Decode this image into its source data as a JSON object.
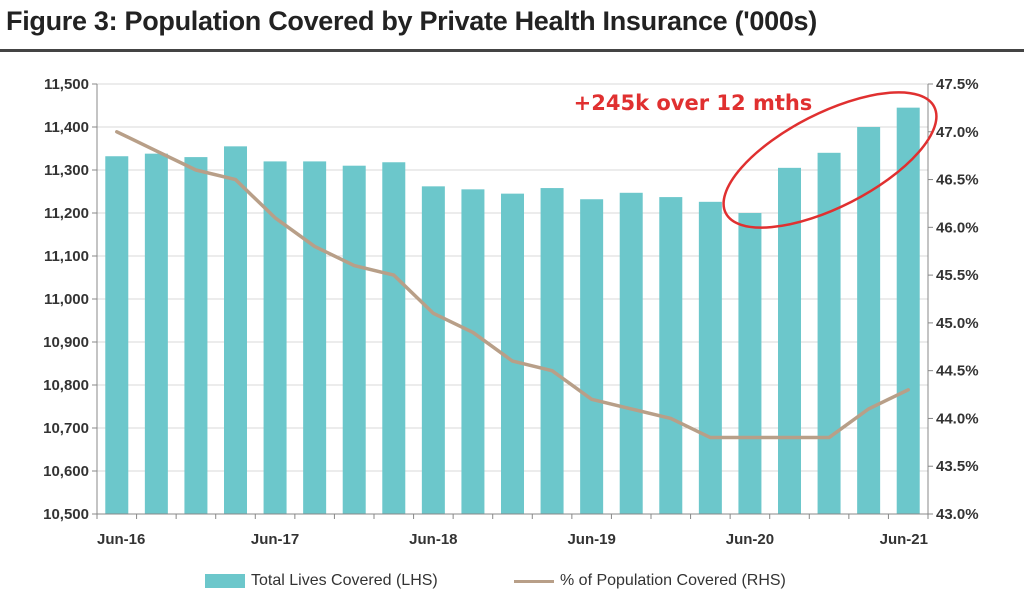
{
  "title": "Figure 3: Population Covered by Private Health Insurance ('000s)",
  "colors": {
    "bar": "#6cc7cb",
    "line": "#b89f88",
    "annotation": "#e03030",
    "axis": "#888888"
  },
  "chart_data": {
    "type": "bar+line",
    "title": "Figure 3: Population Covered by Private Health Insurance ('000s)",
    "x_tick_labels": [
      "Jun-16",
      "Jun-17",
      "Jun-18",
      "Jun-19",
      "Jun-20",
      "Jun-21"
    ],
    "y_left": {
      "min": 10500,
      "max": 11500,
      "step": 100,
      "tick_labels": [
        "10,500",
        "10,600",
        "10,700",
        "10,800",
        "10,900",
        "11,000",
        "11,100",
        "11,200",
        "11,300",
        "11,400",
        "11,500"
      ]
    },
    "y_right": {
      "min": 43.0,
      "max": 47.5,
      "step": 0.5,
      "tick_labels": [
        "43.0%",
        "43.5%",
        "44.0%",
        "44.5%",
        "45.0%",
        "45.5%",
        "46.0%",
        "46.5%",
        "47.0%",
        "47.5%"
      ]
    },
    "series": [
      {
        "name": "Total Lives Covered (LHS)",
        "type": "bar",
        "axis": "left",
        "values": [
          11332,
          11338,
          11330,
          11355,
          11320,
          11320,
          11310,
          11318,
          11262,
          11255,
          11245,
          11258,
          11232,
          11247,
          11237,
          11226,
          11200,
          11305,
          11340,
          11400,
          11445
        ]
      },
      {
        "name": "% of Population Covered (RHS)",
        "type": "line",
        "axis": "right",
        "values": [
          47.0,
          46.8,
          46.6,
          46.5,
          46.1,
          45.8,
          45.6,
          45.5,
          45.1,
          44.9,
          44.6,
          44.5,
          44.2,
          44.1,
          44.0,
          43.8,
          43.8,
          43.8,
          43.8,
          44.1,
          44.3
        ]
      }
    ],
    "annotation": {
      "text": "+245k over 12 mths"
    },
    "legend": {
      "placement": "bottom"
    }
  }
}
